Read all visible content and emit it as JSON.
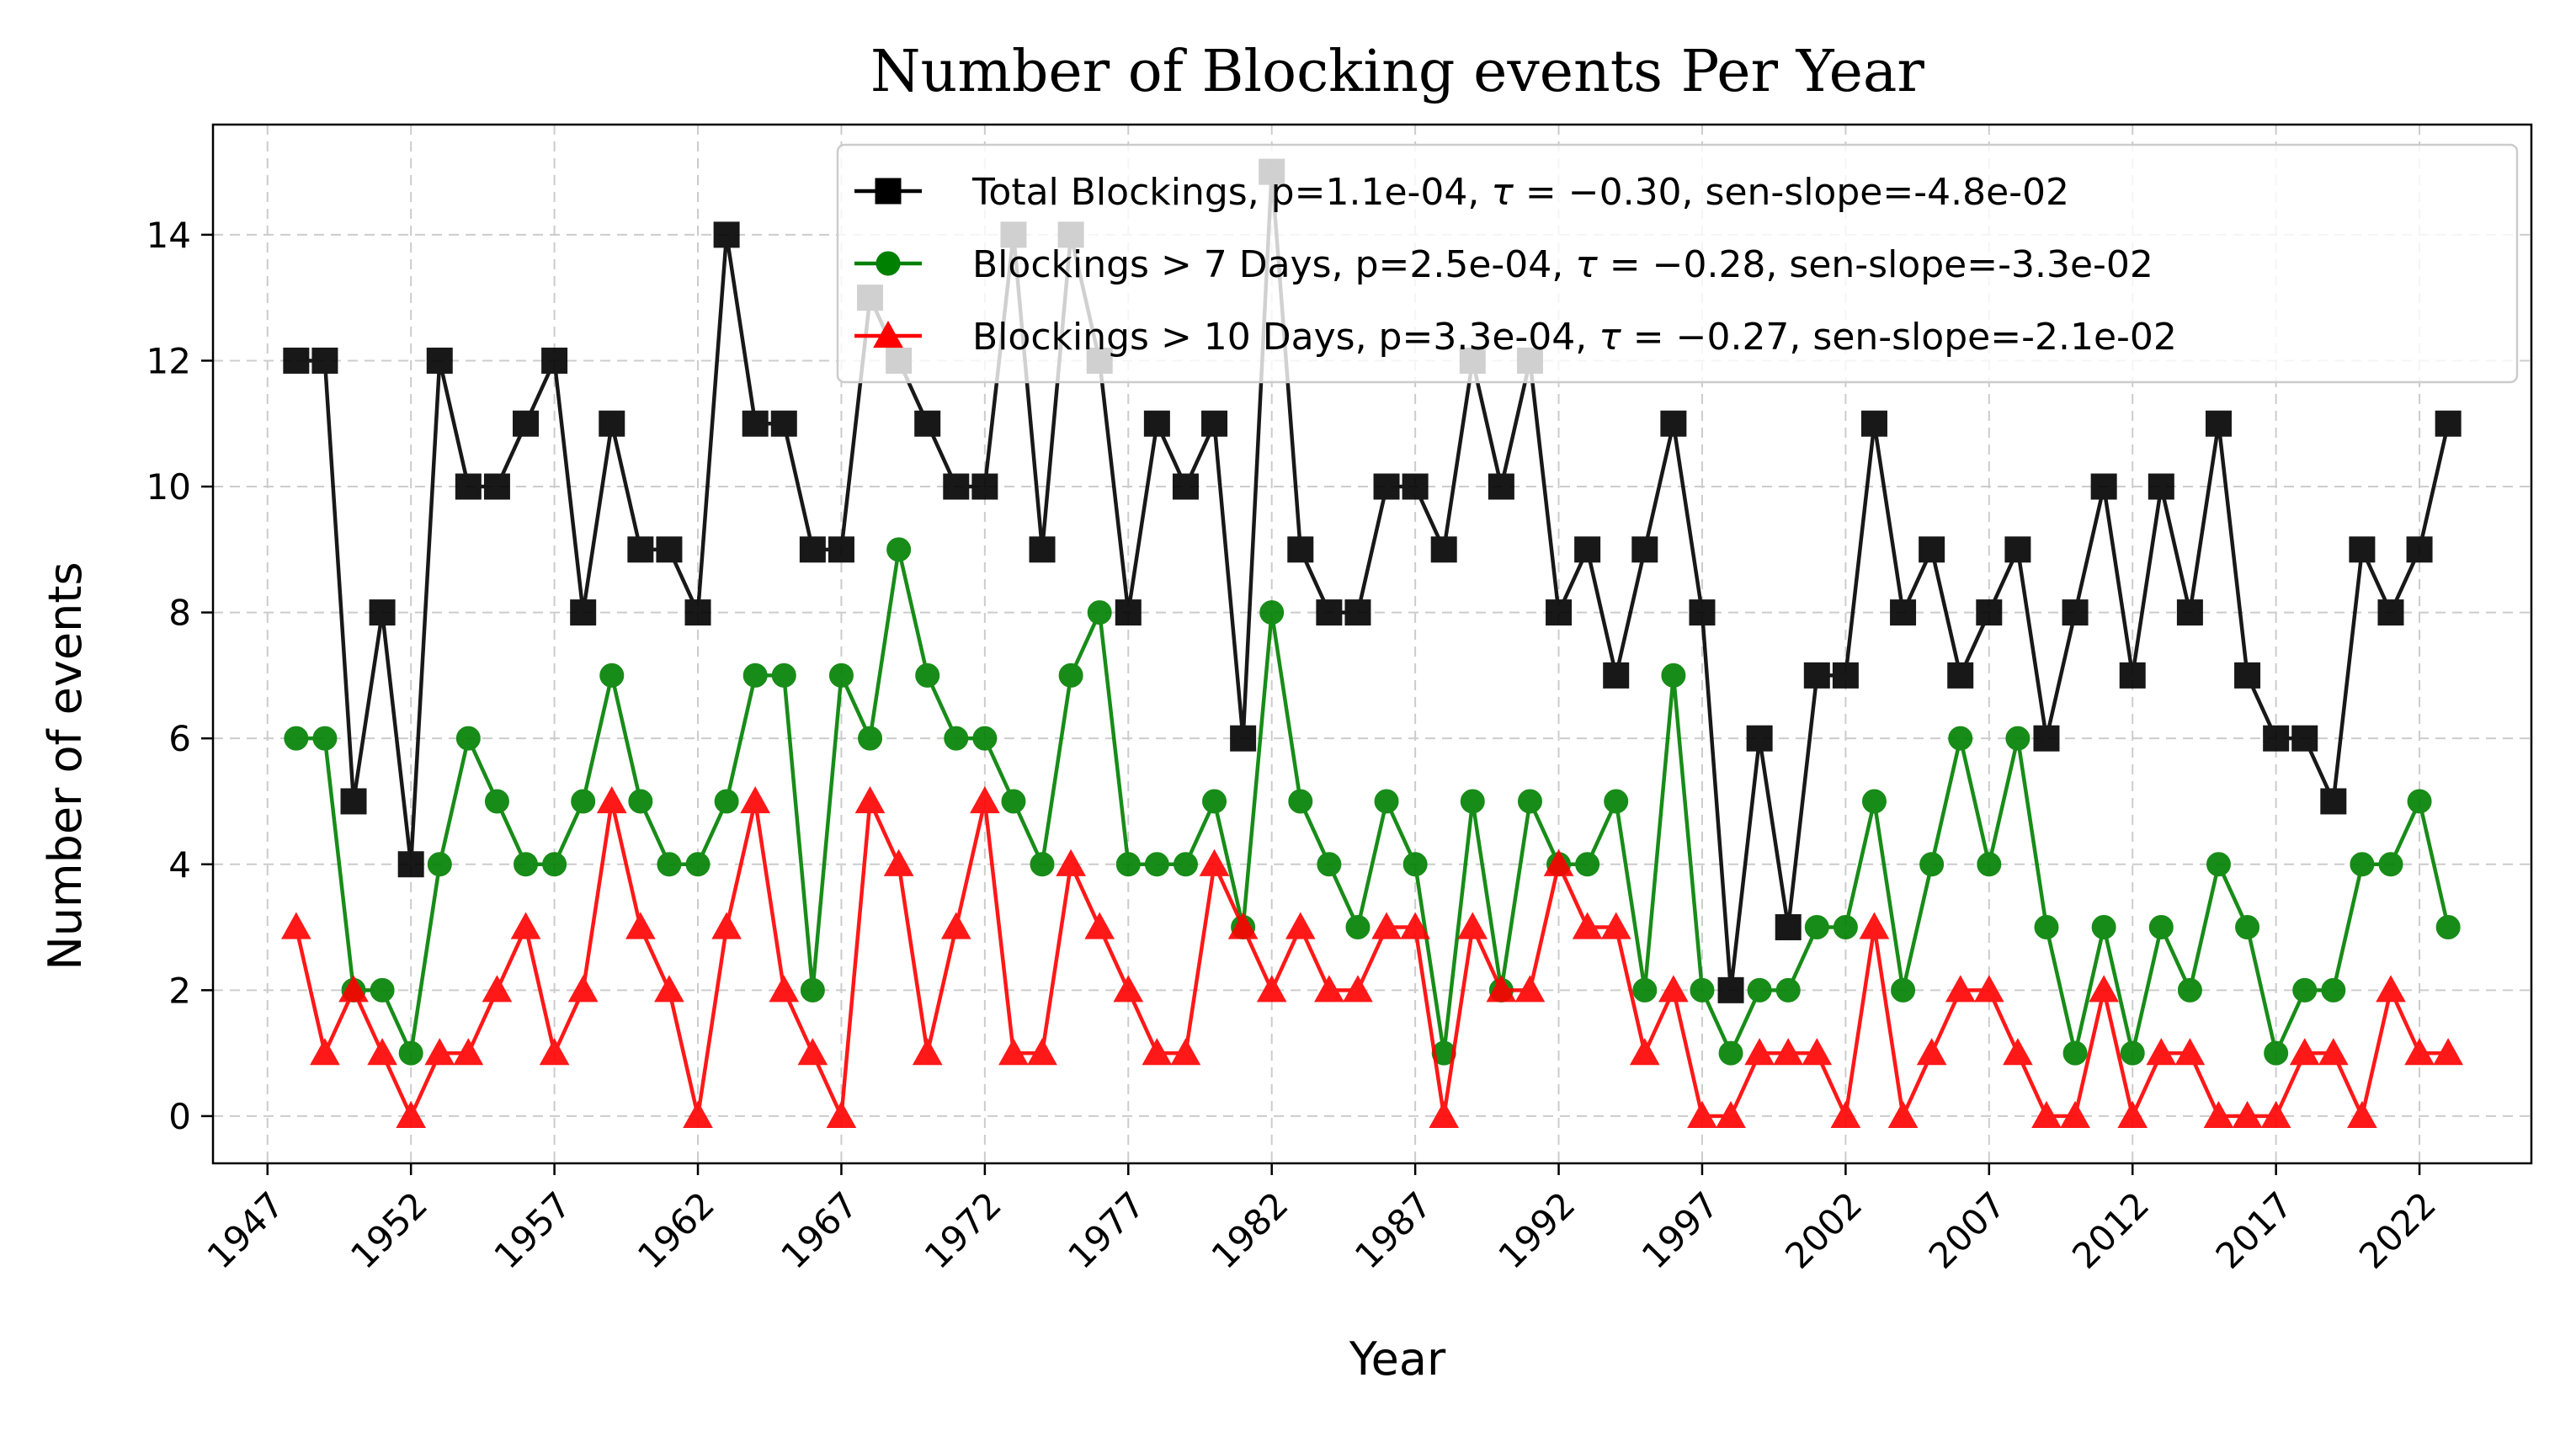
{
  "chart_data": {
    "type": "line",
    "title": "Number of Blocking events Per Year",
    "xlabel": "Year",
    "ylabel": "Number of events",
    "xlim": [
      1945.1,
      2025.9
    ],
    "ylim": [
      -0.75,
      15.75
    ],
    "grid": true,
    "legend_position": "top-right",
    "x_ticks": [
      1947,
      1952,
      1957,
      1962,
      1967,
      1972,
      1977,
      1982,
      1987,
      1992,
      1997,
      2002,
      2007,
      2012,
      2017,
      2022
    ],
    "y_ticks": [
      0,
      2,
      4,
      6,
      8,
      10,
      12,
      14
    ],
    "x": [
      1948,
      1949,
      1950,
      1951,
      1952,
      1953,
      1954,
      1955,
      1956,
      1957,
      1958,
      1959,
      1960,
      1961,
      1962,
      1963,
      1964,
      1965,
      1966,
      1967,
      1968,
      1969,
      1970,
      1971,
      1972,
      1973,
      1974,
      1975,
      1976,
      1977,
      1978,
      1979,
      1980,
      1981,
      1982,
      1983,
      1984,
      1985,
      1986,
      1987,
      1988,
      1989,
      1990,
      1991,
      1992,
      1993,
      1994,
      1995,
      1996,
      1997,
      1998,
      1999,
      2000,
      2001,
      2002,
      2003,
      2004,
      2005,
      2006,
      2007,
      2008,
      2009,
      2010,
      2011,
      2012,
      2013,
      2014,
      2015,
      2016,
      2017,
      2018,
      2019,
      2020,
      2021,
      2022,
      2023
    ],
    "series": [
      {
        "name": "Total Blockings, p=1.1e-04, τ = −0.30, sen-slope=-4.8e-02",
        "legend_parts": [
          "Total Blockings, p=1.1e-04, ",
          "τ",
          " = −0.30, sen-slope=-4.8e-02"
        ],
        "color": "#000000",
        "marker": "square",
        "values": [
          12,
          12,
          5,
          8,
          4,
          12,
          10,
          10,
          11,
          12,
          8,
          11,
          9,
          9,
          8,
          14,
          11,
          11,
          9,
          9,
          13,
          12,
          11,
          10,
          10,
          14,
          9,
          14,
          12,
          8,
          11,
          10,
          11,
          6,
          15,
          9,
          8,
          8,
          10,
          10,
          9,
          12,
          10,
          12,
          8,
          9,
          7,
          9,
          11,
          8,
          2,
          6,
          3,
          7,
          7,
          11,
          8,
          9,
          7,
          8,
          9,
          6,
          8,
          10,
          7,
          10,
          8,
          11,
          7,
          6,
          6,
          5,
          9,
          8,
          9,
          11
        ]
      },
      {
        "name": "Blockings > 7 Days, p=2.5e-04, τ = −0.28, sen-slope=-3.3e-02",
        "legend_parts": [
          "Blockings > 7 Days, p=2.5e-04, ",
          "τ",
          " = −0.28, sen-slope=-3.3e-02"
        ],
        "color": "#008000",
        "marker": "circle",
        "values": [
          6,
          6,
          2,
          2,
          1,
          4,
          6,
          5,
          4,
          4,
          5,
          7,
          5,
          4,
          4,
          5,
          7,
          7,
          2,
          7,
          6,
          9,
          7,
          6,
          6,
          5,
          4,
          7,
          8,
          4,
          4,
          4,
          5,
          3,
          8,
          5,
          4,
          3,
          5,
          4,
          1,
          5,
          2,
          5,
          4,
          4,
          5,
          2,
          7,
          2,
          1,
          2,
          2,
          3,
          3,
          5,
          2,
          4,
          6,
          4,
          6,
          3,
          1,
          3,
          1,
          3,
          2,
          4,
          3,
          1,
          2,
          2,
          4,
          4,
          5,
          3
        ]
      },
      {
        "name": "Blockings > 10 Days, p=3.3e-04, τ = −0.27, sen-slope=-2.1e-02",
        "legend_parts": [
          "Blockings > 10 Days, p=3.3e-04, ",
          "τ",
          " = −0.27, sen-slope=-2.1e-02"
        ],
        "color": "#ff0000",
        "marker": "triangle",
        "values": [
          3,
          1,
          2,
          1,
          0,
          1,
          1,
          2,
          3,
          1,
          2,
          5,
          3,
          2,
          0,
          3,
          5,
          2,
          1,
          0,
          5,
          4,
          1,
          3,
          5,
          1,
          1,
          4,
          3,
          2,
          1,
          1,
          4,
          3,
          2,
          3,
          2,
          2,
          3,
          3,
          0,
          3,
          2,
          2,
          4,
          3,
          3,
          1,
          2,
          0,
          0,
          1,
          1,
          1,
          0,
          3,
          0,
          1,
          2,
          2,
          1,
          0,
          0,
          2,
          0,
          1,
          1,
          0,
          0,
          0,
          1,
          1,
          0,
          2,
          1,
          1
        ]
      }
    ]
  }
}
